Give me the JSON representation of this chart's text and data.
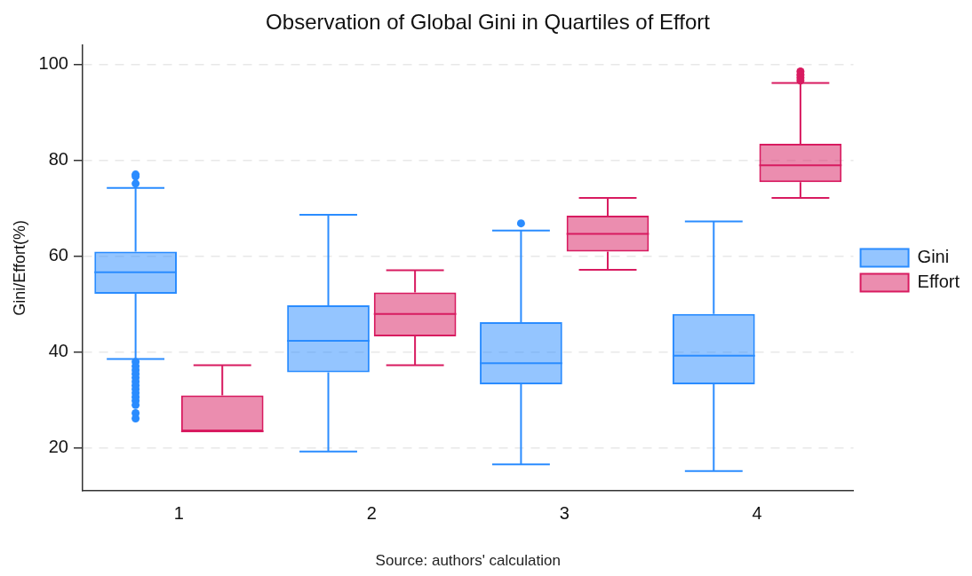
{
  "chart_data": {
    "type": "box",
    "title": "Observation of Global Gini in Quartiles of Effort",
    "ylabel": "Gini/Effort(%)",
    "annotations": [
      "Source: authors' calculation"
    ],
    "categories": [
      "1",
      "2",
      "3",
      "4"
    ],
    "ylim": [
      11,
      104
    ],
    "yticks": [
      20,
      40,
      60,
      80,
      100
    ],
    "grid": "y",
    "legend": "right",
    "series": [
      {
        "name": "Gini",
        "color": "#2a8cff",
        "boxes": [
          {
            "low": 38.5,
            "q1": 52.1,
            "median": 56.6,
            "q3": 60.9,
            "high": 74.2,
            "outliers": [
              77.0,
              76.6,
              75.1,
              37.9,
              37.0,
              36.2,
              35.4,
              34.6,
              33.8,
              33.0,
              32.2,
              31.4,
              30.6,
              29.8,
              28.9,
              27.2,
              26.1
            ]
          },
          {
            "low": 19.2,
            "q1": 35.7,
            "median": 42.3,
            "q3": 49.7,
            "high": 68.6
          },
          {
            "low": 16.5,
            "q1": 33.2,
            "median": 37.6,
            "q3": 46.2,
            "high": 65.3,
            "outliers": [
              66.8
            ]
          },
          {
            "low": 15.1,
            "q1": 33.2,
            "median": 39.2,
            "q3": 47.9,
            "high": 67.2
          }
        ]
      },
      {
        "name": "Effort",
        "color": "#d81b60",
        "boxes": [
          {
            "low": 23.4,
            "q1": 23.4,
            "median": 23.4,
            "q3": 30.9,
            "high": 37.2
          },
          {
            "low": 37.2,
            "q1": 43.2,
            "median": 47.9,
            "q3": 52.4,
            "high": 57.0
          },
          {
            "low": 57.1,
            "q1": 60.9,
            "median": 64.6,
            "q3": 68.4,
            "high": 72.1
          },
          {
            "low": 72.1,
            "q1": 75.4,
            "median": 78.9,
            "q3": 83.4,
            "high": 96.1,
            "outliers": [
              98.5,
              97.8,
              97.2,
              96.6
            ]
          }
        ]
      }
    ]
  }
}
